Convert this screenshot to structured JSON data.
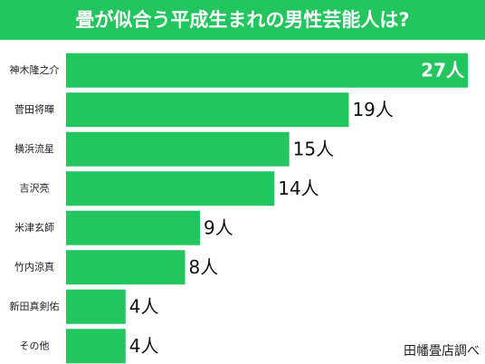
{
  "chart_data": {
    "type": "bar",
    "orientation": "horizontal",
    "title": "畳が似合う平成生まれの男性芸能人は?",
    "categories": [
      "神木隆之介",
      "菅田将暉",
      "横浜流星",
      "吉沢亮",
      "米津玄師",
      "竹内涼真",
      "新田真剣佑",
      "その他"
    ],
    "values": [
      27,
      19,
      15,
      14,
      9,
      8,
      4,
      4
    ],
    "value_labels": [
      "27人",
      "19人",
      "15人",
      "14人",
      "9人",
      "8人",
      "4人",
      "4人"
    ],
    "color": "#22c55e",
    "source": "田幡畳店調べ"
  }
}
